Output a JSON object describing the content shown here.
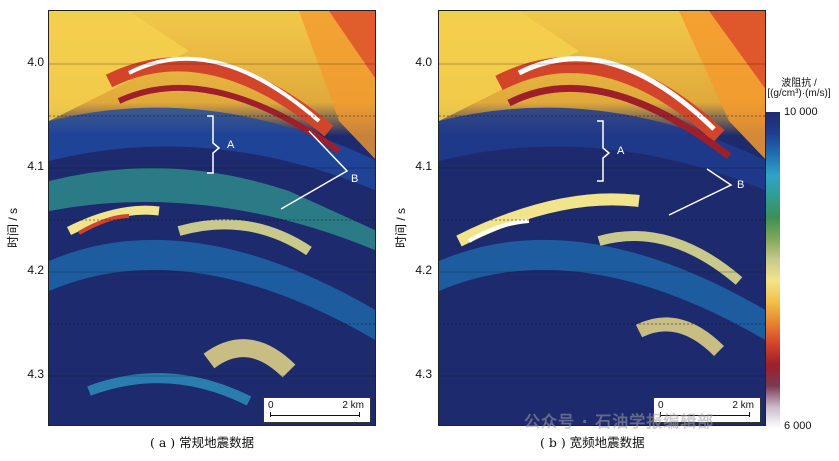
{
  "figure": {
    "y_axis_title": "时间 / s",
    "y_ticks": [
      "4.0",
      "4.1",
      "4.2",
      "4.3"
    ],
    "panels": [
      {
        "caption": "( a ) 常规地震数据",
        "annotation_a": "A",
        "annotation_b": "B",
        "scale_start": "0",
        "scale_end": "2 km"
      },
      {
        "caption": "( b ) 宽频地震数据",
        "annotation_a": "A",
        "annotation_b": "B",
        "scale_start": "0",
        "scale_end": "2 km"
      }
    ],
    "colorbar": {
      "title_line1": "波阻抗 /",
      "title_line2": "[(g/cm³)·(m/s)]",
      "max_label": "10 000",
      "min_label": "6 000",
      "colors": [
        "#1e2a6e",
        "#1f3c8f",
        "#1e6fb0",
        "#2fa3c7",
        "#2f9e8f",
        "#3e8f55",
        "#7fa65a",
        "#c8c98a",
        "#f2e48a",
        "#f2c04a",
        "#e8852f",
        "#d2452b",
        "#9e1f2a",
        "#7a3a52",
        "#c9b9cc",
        "#ffffff"
      ]
    },
    "watermark": "公众号 · 石油学报编辑部"
  }
}
